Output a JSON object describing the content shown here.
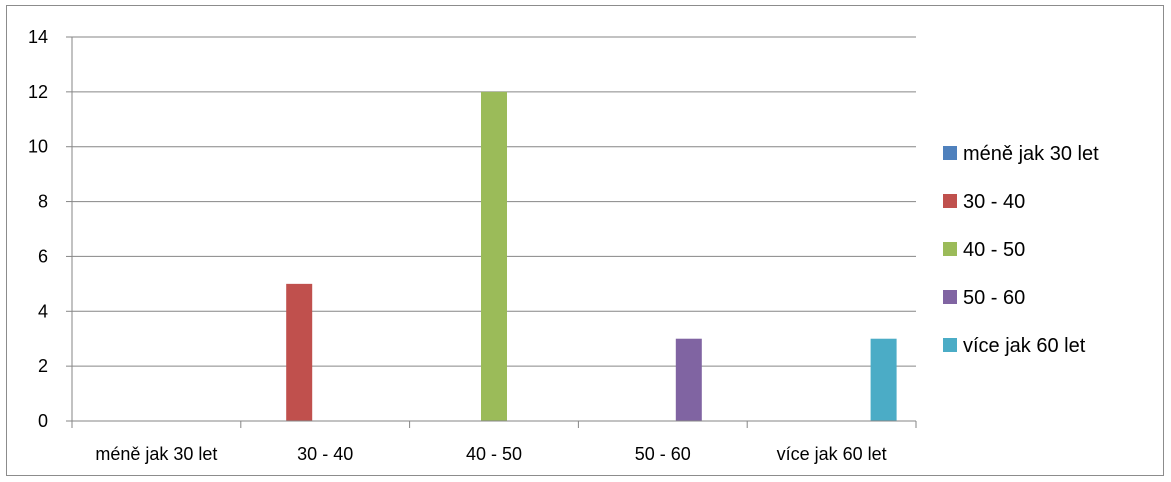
{
  "chart_data": {
    "type": "bar",
    "title": "",
    "xlabel": "",
    "ylabel": "",
    "categories": [
      "méně jak 30 let",
      "30 - 40",
      "40 - 50",
      "50 - 60",
      "více jak 60 let"
    ],
    "series": [
      {
        "name": "méně jak 30 let",
        "values": [
          0,
          0,
          0,
          0,
          0
        ],
        "color": "#4f81bd"
      },
      {
        "name": "30 - 40",
        "values": [
          0,
          5,
          0,
          0,
          0
        ],
        "color": "#c0504d"
      },
      {
        "name": "40 - 50",
        "values": [
          0,
          0,
          12,
          0,
          0
        ],
        "color": "#9bbb59"
      },
      {
        "name": "50 - 60",
        "values": [
          0,
          0,
          0,
          3,
          0
        ],
        "color": "#8064a2"
      },
      {
        "name": "více jak 60 let",
        "values": [
          0,
          0,
          0,
          0,
          3
        ],
        "color": "#4bacc6"
      }
    ],
    "ylim": [
      0,
      14
    ],
    "yticks": [
      "0",
      "2",
      "4",
      "6",
      "8",
      "10",
      "12",
      "14"
    ],
    "grid": true,
    "legend_position": "right"
  }
}
